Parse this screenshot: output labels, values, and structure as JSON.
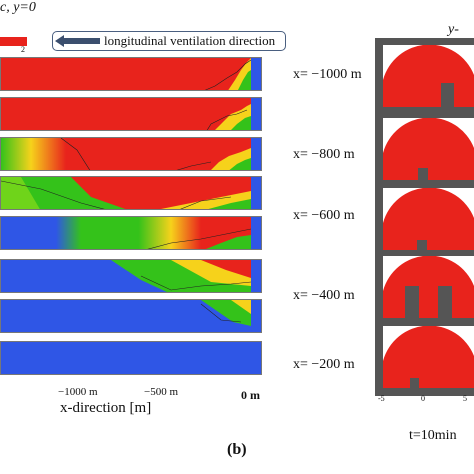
{
  "header": {
    "left_title": "c, y=0",
    "right_title": "y-",
    "colorbar_tick": "2",
    "direction_label": "longitudinal ventilation direction"
  },
  "left_panels": {
    "x_labels": [
      "x= −1000 m",
      "x= −800 m",
      "x= −600 m",
      "x= −400 m",
      "x= −200 m"
    ],
    "x_ticks": [
      "−1000 m",
      "−500 m"
    ],
    "zero_label": "0 m",
    "x_axis_title": "x-direction [m]"
  },
  "right_panels": {
    "ticks": [
      "-5",
      "0",
      "5"
    ],
    "time_label": "t=10min"
  },
  "caption": "(b)",
  "colors": {
    "high": "#e8231c",
    "mid": "#34c21a",
    "low": "#2f56e6",
    "arrow": "#3b4f6e"
  }
}
